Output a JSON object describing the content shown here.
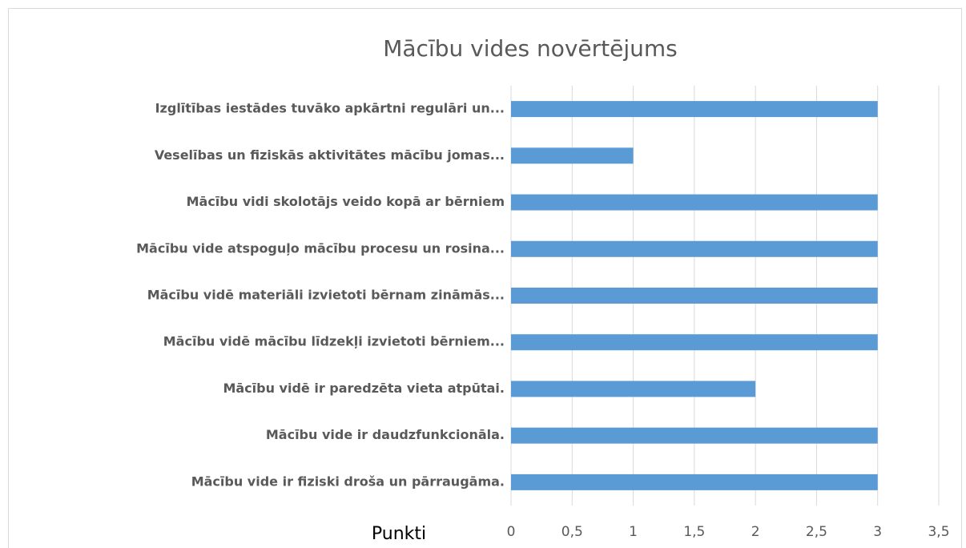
{
  "chart_data": {
    "type": "bar",
    "orientation": "horizontal",
    "title": "Mācību vides novērtējums",
    "xlabel": "Punkti",
    "categories": [
      "Izglītības iestādes tuvāko apkārtni regulāri un...",
      "Veselības un fiziskās aktivitātes mācību jomas...",
      "Mācību vidi skolotājs veido kopā ar bērniem",
      "Mācību vide atspoguļo mācību procesu un rosina...",
      "Mācību vidē materiāli izvietoti bērnam zināmās...",
      "Mācību vidē mācību līdzekļi izvietoti bērniem...",
      "Mācību vidē ir paredzēta vieta atpūtai.",
      "Mācību vide ir daudzfunkcionāla.",
      "Mācību vide ir fiziski droša un pārraugāma."
    ],
    "values": [
      3,
      1,
      3,
      3,
      3,
      3,
      2,
      3,
      3
    ],
    "color": "#5b9bd5",
    "xlim": [
      0,
      3.5
    ],
    "xticks": [
      0,
      {
        "value": 0.5,
        "label": "0,5"
      },
      1,
      {
        "value": 1.5,
        "label": "1,5"
      },
      2,
      {
        "value": 2.5,
        "label": "2,5"
      },
      3,
      {
        "value": 3.5,
        "label": "3,5"
      }
    ],
    "grid": true
  }
}
